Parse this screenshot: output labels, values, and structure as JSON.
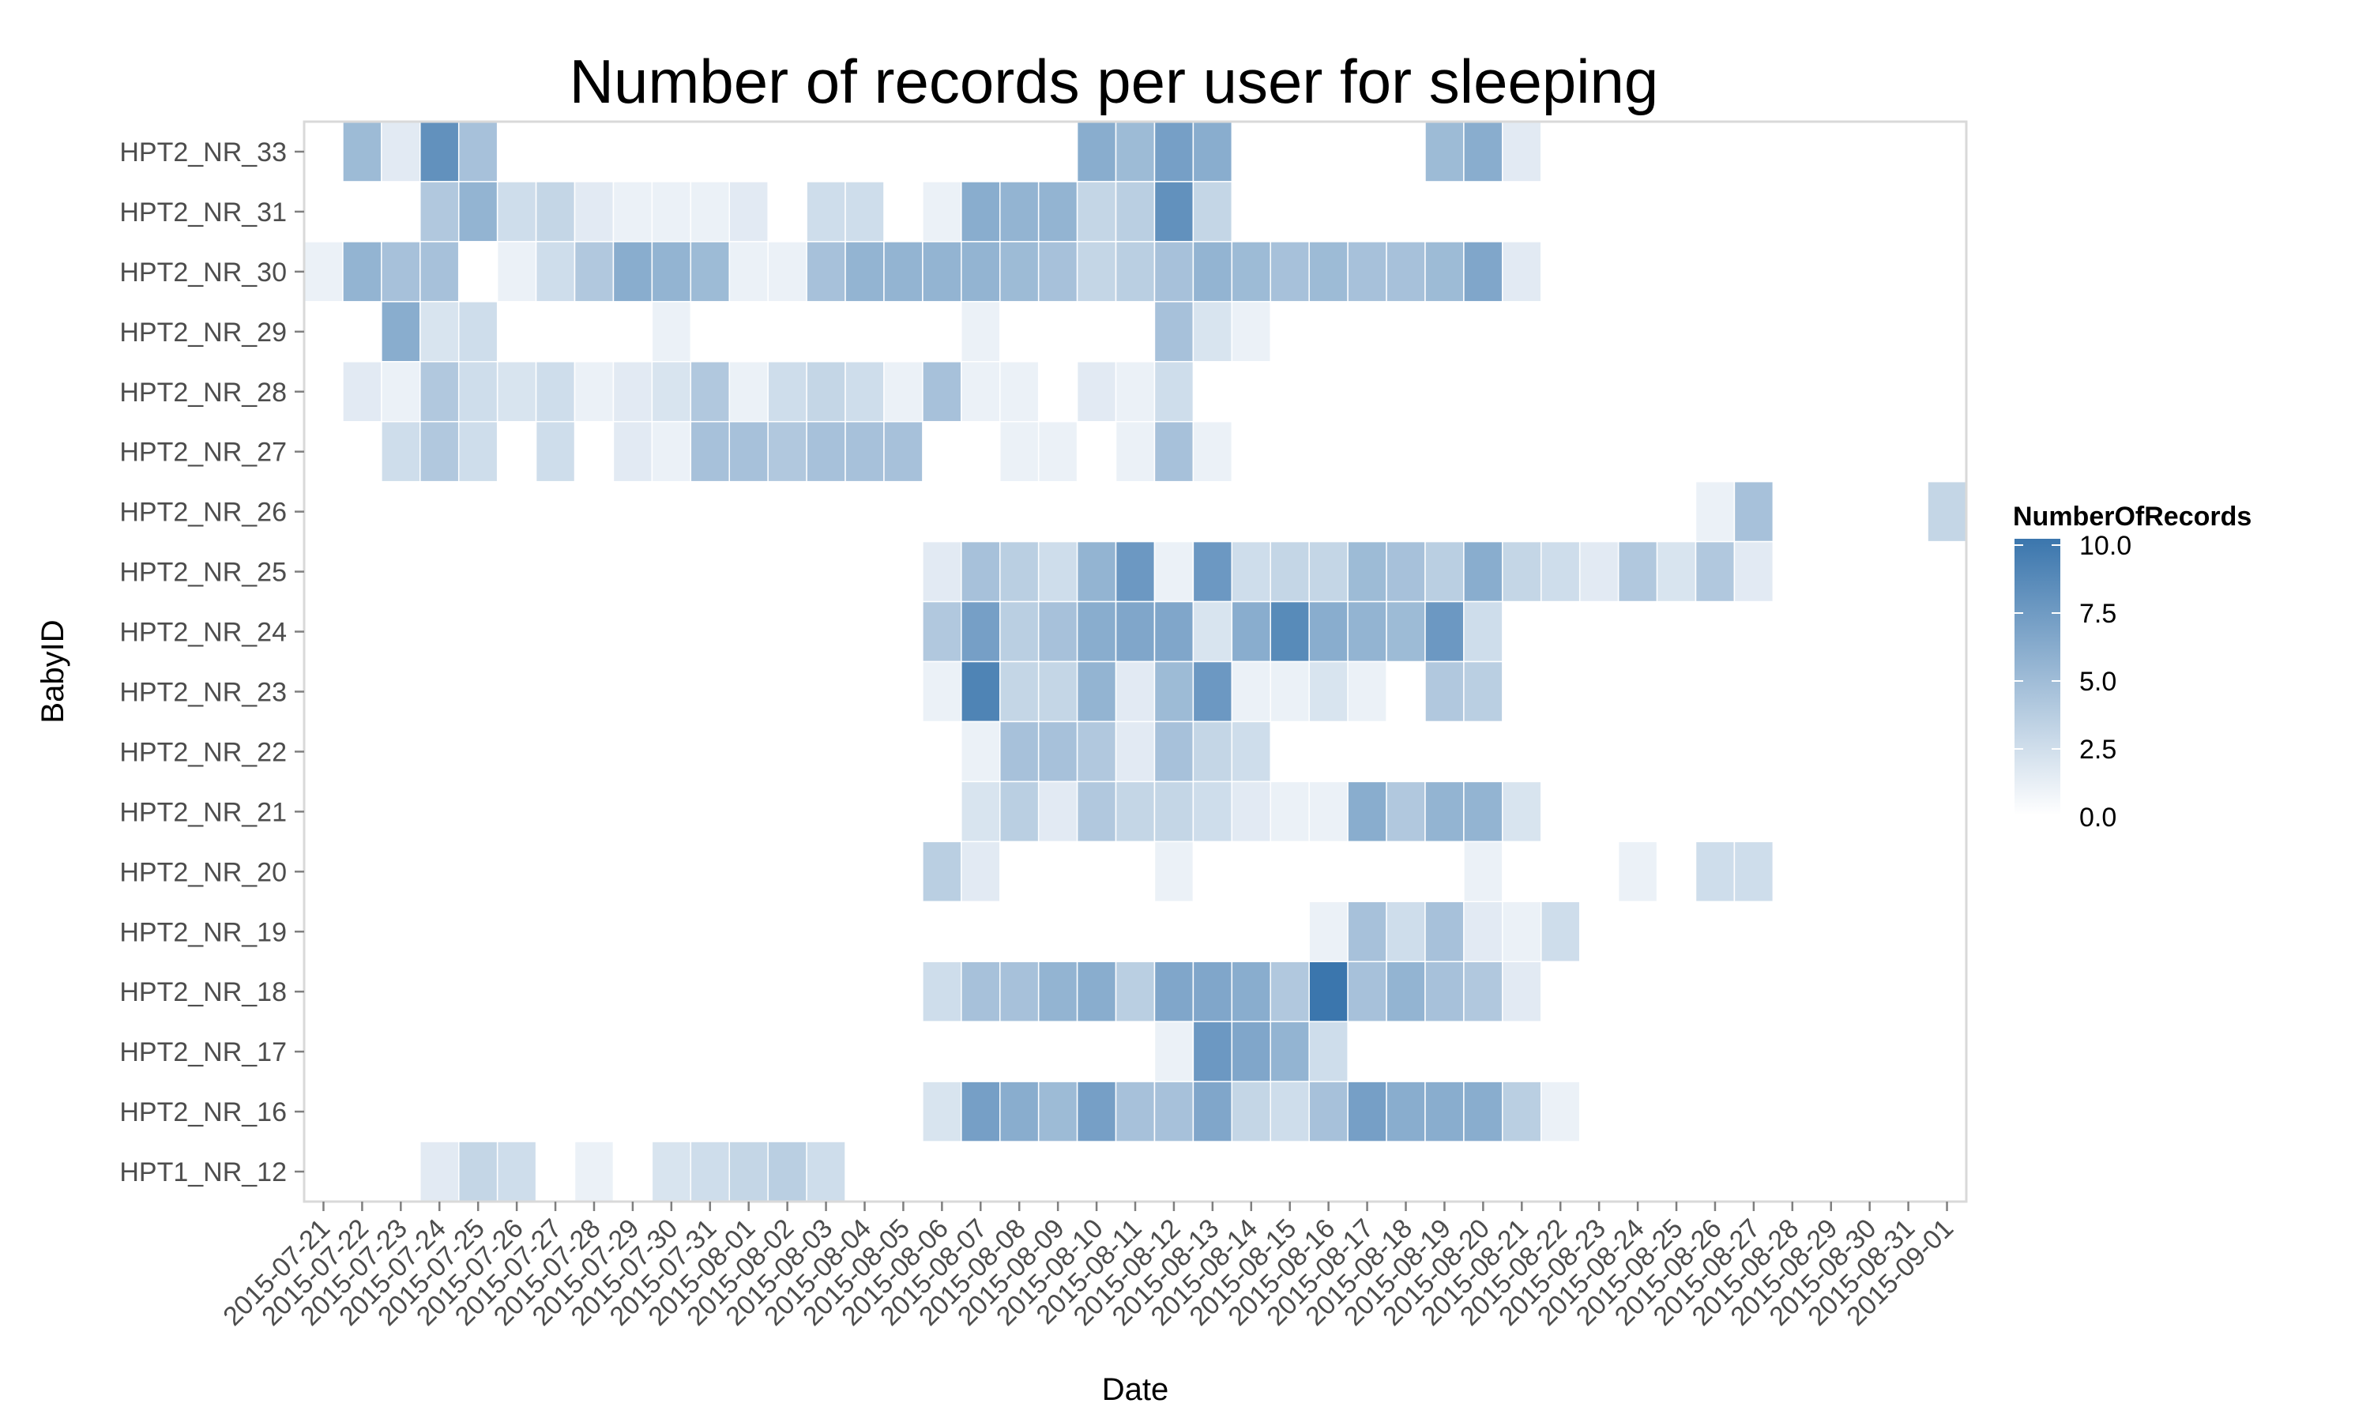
{
  "chart_data": {
    "type": "heatmap",
    "title": "Number of records per user for sleeping",
    "xlabel": "Date",
    "ylabel": "BabyID",
    "x_categories": [
      "2015-07-21",
      "2015-07-22",
      "2015-07-23",
      "2015-07-24",
      "2015-07-25",
      "2015-07-26",
      "2015-07-27",
      "2015-07-28",
      "2015-07-29",
      "2015-07-30",
      "2015-07-31",
      "2015-08-01",
      "2015-08-02",
      "2015-08-03",
      "2015-08-04",
      "2015-08-05",
      "2015-08-06",
      "2015-08-07",
      "2015-08-08",
      "2015-08-09",
      "2015-08-10",
      "2015-08-11",
      "2015-08-12",
      "2015-08-13",
      "2015-08-14",
      "2015-08-15",
      "2015-08-16",
      "2015-08-17",
      "2015-08-18",
      "2015-08-19",
      "2015-08-20",
      "2015-08-21",
      "2015-08-22",
      "2015-08-23",
      "2015-08-24",
      "2015-08-25",
      "2015-08-26",
      "2015-08-27",
      "2015-08-28",
      "2015-08-29",
      "2015-08-30",
      "2015-08-31",
      "2015-09-01"
    ],
    "y_categories": [
      "HPT2_NR_33",
      "HPT2_NR_31",
      "HPT2_NR_30",
      "HPT2_NR_29",
      "HPT2_NR_28",
      "HPT2_NR_27",
      "HPT2_NR_26",
      "HPT2_NR_25",
      "HPT2_NR_24",
      "HPT2_NR_23",
      "HPT2_NR_22",
      "HPT2_NR_21",
      "HPT2_NR_20",
      "HPT2_NR_19",
      "HPT2_NR_18",
      "HPT2_NR_17",
      "HPT2_NR_16",
      "HPT1_NR_12"
    ],
    "values": [
      [
        null,
        5,
        1.5,
        8,
        4.5,
        null,
        null,
        null,
        null,
        null,
        null,
        null,
        null,
        null,
        null,
        null,
        null,
        null,
        null,
        null,
        6,
        5,
        7,
        6,
        null,
        null,
        null,
        null,
        null,
        5,
        6,
        1.5,
        null,
        null,
        null,
        null,
        null,
        null,
        null,
        null,
        null,
        null,
        null
      ],
      [
        null,
        null,
        null,
        4,
        5.5,
        2.5,
        3,
        1.5,
        1,
        1,
        1,
        1.5,
        null,
        2.5,
        2.5,
        null,
        1,
        6,
        5.5,
        5.5,
        3,
        3.5,
        8,
        3,
        null,
        null,
        null,
        null,
        null,
        null,
        null,
        null,
        null,
        null,
        null,
        null,
        null,
        null,
        null,
        null,
        null,
        null,
        null
      ],
      [
        1,
        5.5,
        4.5,
        4.5,
        0,
        1,
        2.5,
        4,
        6,
        5.5,
        5,
        1,
        1,
        4.5,
        5.5,
        5.5,
        5.5,
        5.5,
        5,
        4.5,
        3,
        3.5,
        4.5,
        5.5,
        5,
        4.5,
        5,
        4.5,
        4.5,
        5,
        6.5,
        1.5,
        null,
        null,
        null,
        null,
        null,
        null,
        null,
        null,
        null,
        null,
        null
      ],
      [
        null,
        null,
        6,
        2,
        2.5,
        null,
        null,
        null,
        null,
        1,
        null,
        null,
        null,
        null,
        null,
        null,
        null,
        1,
        null,
        null,
        null,
        null,
        4.5,
        2,
        1,
        null,
        null,
        null,
        null,
        null,
        null,
        null,
        null,
        null,
        null,
        null,
        null,
        null,
        null,
        null,
        null,
        null,
        null
      ],
      [
        null,
        1.5,
        1,
        4,
        2.5,
        2,
        2.5,
        1,
        1.5,
        2,
        4,
        1,
        2.5,
        3,
        2.5,
        1,
        4.5,
        1,
        1,
        null,
        1.5,
        1,
        2.5,
        null,
        null,
        null,
        null,
        null,
        null,
        null,
        null,
        null,
        null,
        null,
        null,
        null,
        null,
        null,
        null,
        null,
        null,
        null,
        null
      ],
      [
        null,
        null,
        2.5,
        4,
        2.5,
        null,
        2.5,
        null,
        1.5,
        1,
        4.5,
        4.5,
        4,
        4.5,
        4.5,
        4.5,
        null,
        null,
        1,
        1,
        null,
        1,
        4.5,
        1,
        null,
        null,
        null,
        null,
        null,
        null,
        null,
        null,
        null,
        null,
        null,
        null,
        null,
        null,
        null,
        null,
        null,
        null,
        null
      ],
      [
        null,
        null,
        null,
        null,
        null,
        null,
        null,
        null,
        null,
        null,
        null,
        null,
        null,
        null,
        null,
        null,
        null,
        null,
        null,
        null,
        null,
        null,
        null,
        null,
        null,
        null,
        null,
        null,
        null,
        null,
        null,
        null,
        null,
        null,
        null,
        null,
        1,
        4.5,
        null,
        null,
        null,
        null,
        3
      ],
      [
        null,
        null,
        null,
        null,
        null,
        null,
        null,
        null,
        null,
        null,
        null,
        null,
        null,
        null,
        null,
        null,
        1.5,
        4.5,
        3.5,
        2.5,
        5.5,
        7.5,
        1,
        7.5,
        2.5,
        3,
        3,
        5,
        4.5,
        3.5,
        6,
        3,
        2.5,
        1.5,
        4,
        2,
        4,
        1.5,
        null,
        null,
        null,
        null,
        null
      ],
      [
        null,
        null,
        null,
        null,
        null,
        null,
        null,
        null,
        null,
        null,
        null,
        null,
        null,
        null,
        null,
        null,
        4,
        7,
        3.5,
        4.5,
        6,
        6.5,
        6.5,
        2,
        6,
        8.5,
        6,
        5.5,
        5,
        7.5,
        2.5,
        null,
        null,
        null,
        null,
        null,
        null,
        null,
        null,
        null,
        null,
        null,
        null
      ],
      [
        null,
        null,
        null,
        null,
        null,
        null,
        null,
        null,
        null,
        null,
        null,
        null,
        null,
        null,
        null,
        null,
        1,
        9,
        3,
        3,
        5.5,
        1.5,
        5,
        7.5,
        1,
        1,
        2,
        1,
        null,
        4,
        3.5,
        null,
        null,
        null,
        null,
        null,
        null,
        null,
        null,
        null,
        null,
        null,
        null
      ],
      [
        null,
        null,
        null,
        null,
        null,
        null,
        null,
        null,
        null,
        null,
        null,
        null,
        null,
        null,
        null,
        null,
        null,
        1,
        4.5,
        4.5,
        4,
        1.5,
        4.5,
        3,
        2.5,
        null,
        null,
        null,
        null,
        null,
        null,
        null,
        null,
        null,
        null,
        null,
        null,
        null,
        null,
        null,
        null,
        null,
        null
      ],
      [
        null,
        null,
        null,
        null,
        null,
        null,
        null,
        null,
        null,
        null,
        null,
        null,
        null,
        null,
        null,
        null,
        null,
        2,
        3.5,
        1.5,
        4,
        3,
        3,
        2.5,
        1.5,
        1,
        1,
        6,
        4,
        5.5,
        5.5,
        2,
        null,
        null,
        null,
        null,
        null,
        null,
        null,
        null,
        null,
        null,
        null
      ],
      [
        null,
        null,
        null,
        null,
        null,
        null,
        null,
        null,
        null,
        null,
        null,
        null,
        null,
        null,
        null,
        null,
        3.5,
        1.5,
        null,
        null,
        null,
        null,
        1,
        null,
        null,
        null,
        null,
        null,
        null,
        null,
        1,
        null,
        null,
        null,
        1,
        null,
        2.5,
        2.5,
        null,
        null,
        null,
        null,
        null
      ],
      [
        null,
        null,
        null,
        null,
        null,
        null,
        null,
        null,
        null,
        null,
        null,
        null,
        null,
        null,
        null,
        null,
        null,
        null,
        null,
        null,
        null,
        null,
        null,
        null,
        null,
        null,
        1,
        4.5,
        2.5,
        4.5,
        1.5,
        1,
        2.5,
        null,
        null,
        null,
        null,
        null,
        null,
        null,
        null,
        null,
        null
      ],
      [
        null,
        null,
        null,
        null,
        null,
        null,
        null,
        null,
        null,
        null,
        null,
        null,
        null,
        null,
        null,
        null,
        2.5,
        4.5,
        4.5,
        5.5,
        6,
        3.5,
        6.5,
        6.5,
        6,
        4,
        10,
        4.5,
        5.5,
        4.5,
        4,
        1.5,
        null,
        null,
        null,
        null,
        null,
        null,
        null,
        null,
        null,
        null,
        null
      ],
      [
        null,
        null,
        null,
        null,
        null,
        null,
        null,
        null,
        null,
        null,
        null,
        null,
        null,
        null,
        null,
        null,
        null,
        null,
        null,
        null,
        null,
        null,
        1,
        7.5,
        6.5,
        5.5,
        2.5,
        null,
        null,
        null,
        null,
        null,
        null,
        null,
        null,
        null,
        null,
        null,
        null,
        null,
        null,
        null,
        null
      ],
      [
        null,
        null,
        null,
        null,
        null,
        null,
        null,
        null,
        null,
        null,
        null,
        null,
        null,
        null,
        null,
        null,
        2,
        7,
        6,
        5,
        7,
        4.5,
        4.5,
        6.5,
        3,
        2.5,
        4.5,
        7,
        6,
        6,
        6,
        3.5,
        1,
        null,
        null,
        null,
        null,
        null,
        null,
        null,
        null,
        null,
        null
      ],
      [
        null,
        null,
        null,
        1.5,
        3,
        2.5,
        null,
        1,
        null,
        2,
        2.5,
        3,
        3.5,
        2.5,
        null,
        null,
        null,
        null,
        null,
        null,
        null,
        null,
        null,
        null,
        null,
        null,
        null,
        null,
        null,
        null,
        null,
        null,
        null,
        null,
        null,
        null,
        null,
        null,
        null,
        null,
        null,
        null,
        null
      ]
    ],
    "color_scale": {
      "low": "#ffffff",
      "high": "#3b76ad",
      "min": 0,
      "max": 10
    },
    "legend": {
      "title": "NumberOfRecords",
      "ticks": [
        "10.0",
        "7.5",
        "5.0",
        "2.5",
        "0.0"
      ],
      "tick_values": [
        10,
        7.5,
        5,
        2.5,
        0
      ],
      "position": "right"
    },
    "grid": true,
    "panel_border_color": "#d9d9d9"
  }
}
